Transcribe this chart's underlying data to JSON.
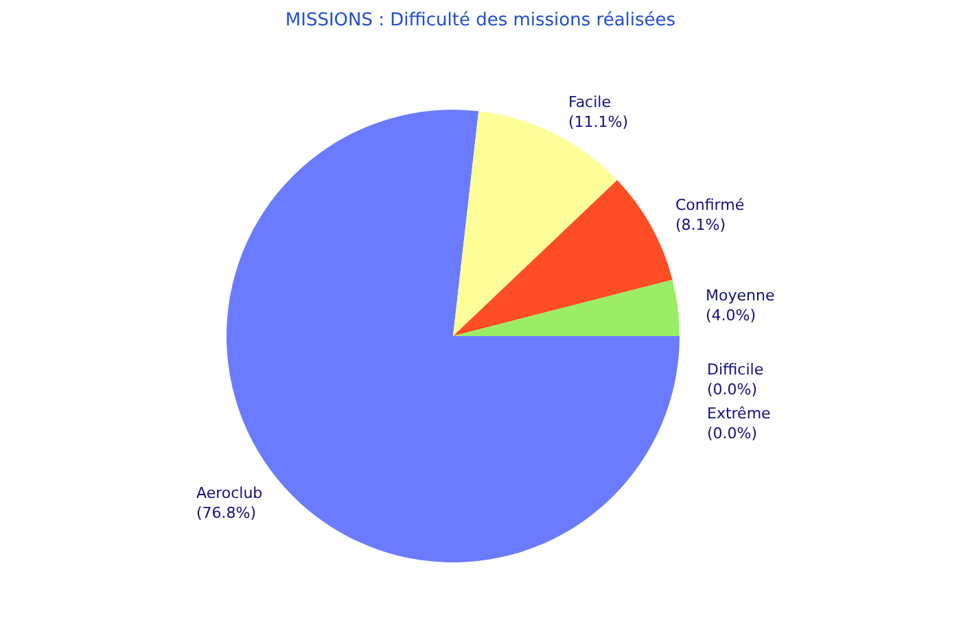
{
  "chart_data": {
    "type": "pie",
    "title": "MISSIONS : Difficulté des missions réalisées",
    "categories": [
      "Aeroclub",
      "Facile",
      "Confirmé",
      "Moyenne",
      "Difficile",
      "Extrême"
    ],
    "values": [
      76.8,
      11.1,
      8.1,
      4.0,
      0.0,
      0.0
    ],
    "colors": [
      "#6b7bff",
      "#ffff99",
      "#ff4d26",
      "#99ee66",
      "#a8a000",
      "#a8a000"
    ],
    "value_labels": [
      "(76.8%)",
      "(11.1%)",
      "(8.1%)",
      "(4.0%)",
      "(0.0%)",
      "(0.0%)"
    ]
  }
}
